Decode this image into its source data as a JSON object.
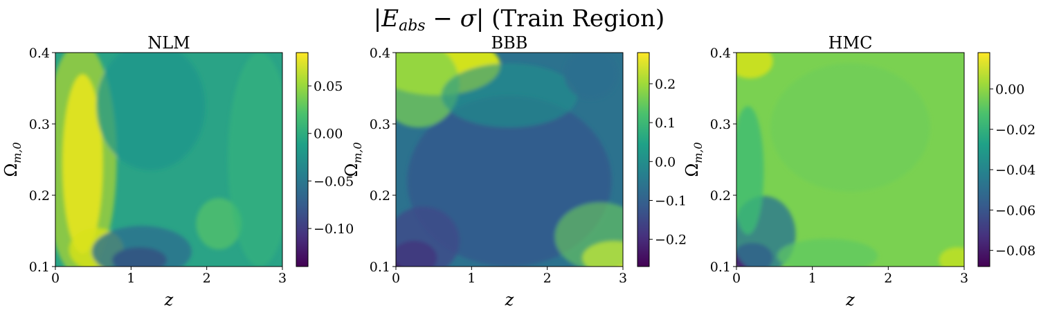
{
  "figure_title": "|E_abs − σ| (Train Region)",
  "figure_title_parts": {
    "open_bar": "|",
    "var_e": "E",
    "sub": "abs",
    "minus": " − ",
    "sigma": "σ",
    "close_bar": "|",
    "rest": " (Train Region)"
  },
  "colormap": [
    "#440154",
    "#46327e",
    "#365c8d",
    "#277f8e",
    "#1fa187",
    "#4ac16d",
    "#a0da39",
    "#fde725"
  ],
  "chart_data": [
    {
      "type": "heatmap",
      "title": "NLM",
      "xlabel": "z",
      "ylabel": "Ω_{m,0}",
      "ylabel_parts": {
        "main": "Ω",
        "sub": "m,0"
      },
      "xlim": [
        0,
        3
      ],
      "ylim": [
        0.1,
        0.4
      ],
      "xticks": [
        "0",
        "1",
        "2",
        "3"
      ],
      "yticks": [
        "0.1",
        "0.2",
        "0.3",
        "0.4"
      ],
      "colorbar_range": [
        -0.14,
        0.085
      ],
      "colorbar_ticks": [
        {
          "value": 0.05,
          "label": "0.05"
        },
        {
          "value": 0.0,
          "label": "0.00"
        },
        {
          "value": -0.05,
          "label": "−0.05"
        },
        {
          "value": -0.1,
          "label": "−0.10"
        }
      ]
    },
    {
      "type": "heatmap",
      "title": "BBB",
      "xlabel": "z",
      "ylabel": "Ω_{m,0}",
      "ylabel_parts": {
        "main": "Ω",
        "sub": "m,0"
      },
      "xlim": [
        0,
        3
      ],
      "ylim": [
        0.1,
        0.4
      ],
      "xticks": [
        "0",
        "1",
        "2",
        "3"
      ],
      "yticks": [
        "0.1",
        "0.2",
        "0.3",
        "0.4"
      ],
      "colorbar_range": [
        -0.27,
        0.28
      ],
      "colorbar_ticks": [
        {
          "value": 0.2,
          "label": "0.2"
        },
        {
          "value": 0.1,
          "label": "0.1"
        },
        {
          "value": 0.0,
          "label": "0.0"
        },
        {
          "value": -0.1,
          "label": "−0.1"
        },
        {
          "value": -0.2,
          "label": "−0.2"
        }
      ]
    },
    {
      "type": "heatmap",
      "title": "HMC",
      "xlabel": "z",
      "ylabel": "Ω_{m,0}",
      "ylabel_parts": {
        "main": "Ω",
        "sub": "m,0"
      },
      "xlim": [
        0,
        3
      ],
      "ylim": [
        0.1,
        0.4
      ],
      "xticks": [
        "0",
        "1",
        "2",
        "3"
      ],
      "yticks": [
        "0.1",
        "0.2",
        "0.3",
        "0.4"
      ],
      "colorbar_range": [
        -0.088,
        0.018
      ],
      "colorbar_ticks": [
        {
          "value": 0.0,
          "label": "0.00"
        },
        {
          "value": -0.02,
          "label": "−0.02"
        },
        {
          "value": -0.04,
          "label": "−0.04"
        },
        {
          "value": -0.06,
          "label": "−0.06"
        },
        {
          "value": -0.08,
          "label": "−0.08"
        }
      ]
    }
  ]
}
